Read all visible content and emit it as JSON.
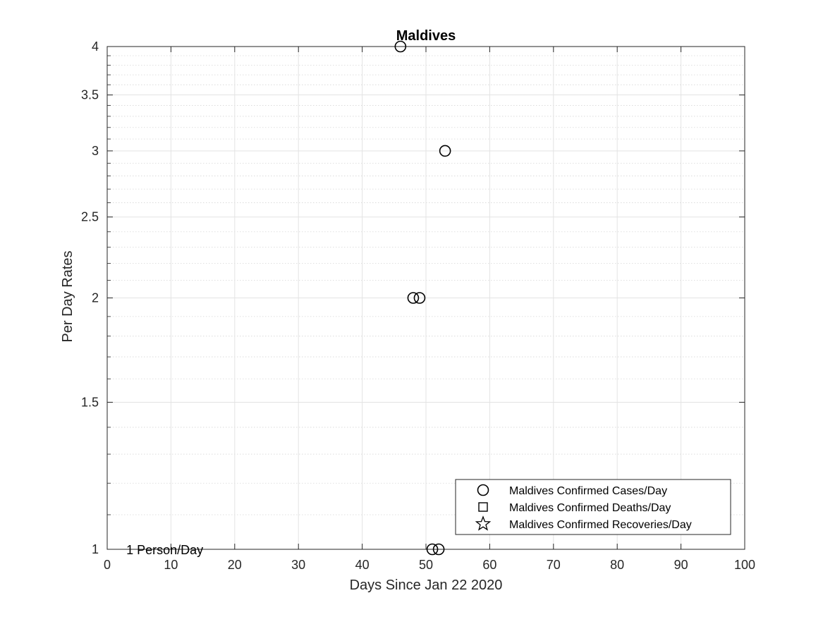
{
  "chart_data": {
    "type": "scatter",
    "title": "Maldives",
    "xlabel": "Days Since Jan 22 2020",
    "ylabel": "Per Day Rates",
    "xlim": [
      0,
      100
    ],
    "ylim": [
      1,
      4
    ],
    "yscale": "log",
    "grid": true,
    "minor_grid": true,
    "xticks": [
      "0",
      "10",
      "20",
      "30",
      "40",
      "50",
      "60",
      "70",
      "80",
      "90",
      "100"
    ],
    "yticks": [
      "1",
      "1.5",
      "2",
      "2.5",
      "3",
      "3.5",
      "4"
    ],
    "legend_position": "bottom-right",
    "annotations": [
      {
        "text": "1 Person/Day",
        "x": 3,
        "y": 1
      }
    ],
    "series": [
      {
        "name": "Maldives Confirmed Cases/Day",
        "marker": "circle",
        "color": "#000000",
        "points": [
          {
            "x": 46,
            "y": 4
          },
          {
            "x": 48,
            "y": 2
          },
          {
            "x": 49,
            "y": 2
          },
          {
            "x": 51,
            "y": 1
          },
          {
            "x": 52,
            "y": 1
          },
          {
            "x": 53,
            "y": 3
          }
        ]
      },
      {
        "name": "Maldives Confirmed Deaths/Day",
        "marker": "square",
        "color": "#000000",
        "points": []
      },
      {
        "name": "Maldives Confirmed Recoveries/Day",
        "marker": "star",
        "color": "#000000",
        "points": []
      }
    ]
  }
}
